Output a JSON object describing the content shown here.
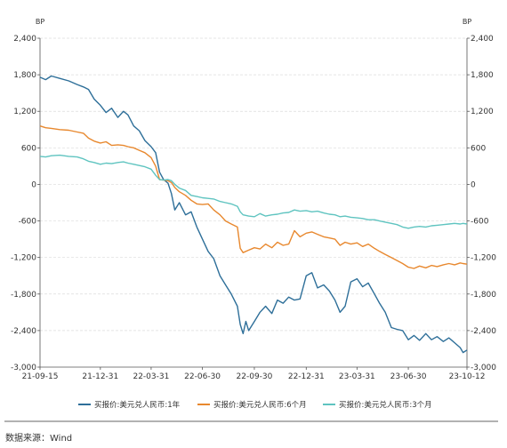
{
  "chart_data": {
    "type": "line",
    "ylabel_left": "BP",
    "ylabel_right": "BP",
    "ylim": [
      -3000,
      2400
    ],
    "yticks": [
      2400,
      1800,
      1200,
      600,
      0,
      -600,
      -1200,
      -1800,
      -2400,
      -3000
    ],
    "ytick_labels": [
      "2,400",
      "1,800",
      "1,200",
      "600",
      "0",
      "-600",
      "-1,200",
      "-1,800",
      "-2,400",
      "-3,000"
    ],
    "xticks": [
      "21-09-15",
      "21-12-31",
      "22-03-31",
      "22-06-30",
      "22-09-30",
      "22-12-31",
      "23-03-31",
      "23-06-30",
      "23-10-12"
    ],
    "grid": true,
    "legend": "bottom",
    "source": "数据来源：Wind",
    "series": [
      {
        "name": "买报价:美元兑人民币:1年",
        "color": "#2e6f99",
        "points": [
          [
            "21-09-15",
            1760
          ],
          [
            "21-09-25",
            1720
          ],
          [
            "21-10-05",
            1780
          ],
          [
            "21-10-20",
            1740
          ],
          [
            "21-11-05",
            1700
          ],
          [
            "21-11-20",
            1640
          ],
          [
            "21-12-01",
            1600
          ],
          [
            "21-12-10",
            1560
          ],
          [
            "21-12-20",
            1400
          ],
          [
            "21-12-31",
            1300
          ],
          [
            "22-01-10",
            1180
          ],
          [
            "22-01-20",
            1250
          ],
          [
            "22-01-31",
            1100
          ],
          [
            "22-02-10",
            1200
          ],
          [
            "22-02-18",
            1140
          ],
          [
            "22-02-28",
            960
          ],
          [
            "22-03-10",
            880
          ],
          [
            "22-03-20",
            720
          ],
          [
            "22-03-31",
            620
          ],
          [
            "22-04-08",
            520
          ],
          [
            "22-04-15",
            200
          ],
          [
            "22-04-22",
            80
          ],
          [
            "22-04-30",
            20
          ],
          [
            "22-05-06",
            -150
          ],
          [
            "22-05-12",
            -420
          ],
          [
            "22-05-20",
            -300
          ],
          [
            "22-05-31",
            -500
          ],
          [
            "22-06-10",
            -450
          ],
          [
            "22-06-20",
            -700
          ],
          [
            "22-06-30",
            -900
          ],
          [
            "22-07-10",
            -1100
          ],
          [
            "22-07-20",
            -1220
          ],
          [
            "22-07-31",
            -1500
          ],
          [
            "22-08-10",
            -1650
          ],
          [
            "22-08-20",
            -1800
          ],
          [
            "22-08-31",
            -2000
          ],
          [
            "22-09-05",
            -2300
          ],
          [
            "22-09-10",
            -2450
          ],
          [
            "22-09-15",
            -2250
          ],
          [
            "22-09-20",
            -2400
          ],
          [
            "22-09-30",
            -2250
          ],
          [
            "22-10-10",
            -2100
          ],
          [
            "22-10-20",
            -2000
          ],
          [
            "22-10-31",
            -2120
          ],
          [
            "22-11-10",
            -1900
          ],
          [
            "22-11-20",
            -1950
          ],
          [
            "22-11-30",
            -1850
          ],
          [
            "22-12-10",
            -1900
          ],
          [
            "22-12-20",
            -1880
          ],
          [
            "22-12-31",
            -1500
          ],
          [
            "23-01-10",
            -1450
          ],
          [
            "23-01-20",
            -1700
          ],
          [
            "23-01-31",
            -1650
          ],
          [
            "23-02-10",
            -1750
          ],
          [
            "23-02-20",
            -1900
          ],
          [
            "23-03-01",
            -2100
          ],
          [
            "23-03-10",
            -2000
          ],
          [
            "23-03-20",
            -1600
          ],
          [
            "23-03-31",
            -1550
          ],
          [
            "23-04-10",
            -1680
          ],
          [
            "23-04-20",
            -1620
          ],
          [
            "23-05-01",
            -1800
          ],
          [
            "23-05-10",
            -1950
          ],
          [
            "23-05-20",
            -2100
          ],
          [
            "23-05-31",
            -2350
          ],
          [
            "23-06-10",
            -2380
          ],
          [
            "23-06-20",
            -2400
          ],
          [
            "23-06-30",
            -2550
          ],
          [
            "23-07-10",
            -2480
          ],
          [
            "23-07-20",
            -2560
          ],
          [
            "23-07-31",
            -2450
          ],
          [
            "23-08-10",
            -2550
          ],
          [
            "23-08-20",
            -2500
          ],
          [
            "23-08-31",
            -2580
          ],
          [
            "23-09-10",
            -2520
          ],
          [
            "23-09-20",
            -2600
          ],
          [
            "23-09-30",
            -2680
          ],
          [
            "23-10-05",
            -2760
          ],
          [
            "23-10-12",
            -2720
          ]
        ]
      },
      {
        "name": "买报价:美元兑人民币:6个月",
        "color": "#e8882e",
        "points": [
          [
            "21-09-15",
            960
          ],
          [
            "21-09-25",
            930
          ],
          [
            "21-10-05",
            920
          ],
          [
            "21-10-20",
            900
          ],
          [
            "21-11-05",
            890
          ],
          [
            "21-11-20",
            860
          ],
          [
            "21-12-01",
            840
          ],
          [
            "21-12-10",
            760
          ],
          [
            "21-12-20",
            710
          ],
          [
            "21-12-31",
            680
          ],
          [
            "22-01-10",
            700
          ],
          [
            "22-01-20",
            640
          ],
          [
            "22-01-31",
            650
          ],
          [
            "22-02-10",
            640
          ],
          [
            "22-02-18",
            620
          ],
          [
            "22-02-28",
            600
          ],
          [
            "22-03-10",
            560
          ],
          [
            "22-03-20",
            520
          ],
          [
            "22-03-31",
            440
          ],
          [
            "22-04-08",
            300
          ],
          [
            "22-04-15",
            80
          ],
          [
            "22-04-22",
            70
          ],
          [
            "22-04-30",
            60
          ],
          [
            "22-05-06",
            30
          ],
          [
            "22-05-12",
            -50
          ],
          [
            "22-05-20",
            -120
          ],
          [
            "22-05-31",
            -180
          ],
          [
            "22-06-10",
            -260
          ],
          [
            "22-06-20",
            -320
          ],
          [
            "22-06-30",
            -330
          ],
          [
            "22-07-10",
            -320
          ],
          [
            "22-07-20",
            -420
          ],
          [
            "22-07-31",
            -500
          ],
          [
            "22-08-10",
            -600
          ],
          [
            "22-08-20",
            -650
          ],
          [
            "22-08-31",
            -700
          ],
          [
            "22-09-05",
            -1050
          ],
          [
            "22-09-10",
            -1120
          ],
          [
            "22-09-20",
            -1080
          ],
          [
            "22-09-30",
            -1040
          ],
          [
            "22-10-10",
            -1060
          ],
          [
            "22-10-20",
            -980
          ],
          [
            "22-10-31",
            -1040
          ],
          [
            "22-11-10",
            -950
          ],
          [
            "22-11-20",
            -1000
          ],
          [
            "22-11-30",
            -980
          ],
          [
            "22-12-10",
            -760
          ],
          [
            "22-12-20",
            -860
          ],
          [
            "22-12-31",
            -800
          ],
          [
            "23-01-10",
            -780
          ],
          [
            "23-01-20",
            -820
          ],
          [
            "23-01-31",
            -860
          ],
          [
            "23-02-10",
            -880
          ],
          [
            "23-02-20",
            -900
          ],
          [
            "23-03-01",
            -1000
          ],
          [
            "23-03-10",
            -950
          ],
          [
            "23-03-20",
            -980
          ],
          [
            "23-03-31",
            -960
          ],
          [
            "23-04-10",
            -1020
          ],
          [
            "23-04-20",
            -980
          ],
          [
            "23-05-01",
            -1050
          ],
          [
            "23-05-10",
            -1100
          ],
          [
            "23-05-20",
            -1150
          ],
          [
            "23-05-31",
            -1200
          ],
          [
            "23-06-10",
            -1250
          ],
          [
            "23-06-20",
            -1300
          ],
          [
            "23-06-30",
            -1360
          ],
          [
            "23-07-10",
            -1380
          ],
          [
            "23-07-20",
            -1340
          ],
          [
            "23-07-31",
            -1370
          ],
          [
            "23-08-10",
            -1330
          ],
          [
            "23-08-20",
            -1350
          ],
          [
            "23-08-31",
            -1320
          ],
          [
            "23-09-10",
            -1300
          ],
          [
            "23-09-20",
            -1320
          ],
          [
            "23-09-30",
            -1290
          ],
          [
            "23-10-05",
            -1300
          ],
          [
            "23-10-12",
            -1310
          ]
        ]
      },
      {
        "name": "买报价:美元兑人民币:3个月",
        "color": "#5fc4c0",
        "points": [
          [
            "21-09-15",
            460
          ],
          [
            "21-09-25",
            450
          ],
          [
            "21-10-05",
            470
          ],
          [
            "21-10-20",
            480
          ],
          [
            "21-11-05",
            460
          ],
          [
            "21-11-20",
            450
          ],
          [
            "21-12-01",
            420
          ],
          [
            "21-12-10",
            380
          ],
          [
            "21-12-20",
            360
          ],
          [
            "21-12-31",
            330
          ],
          [
            "22-01-10",
            350
          ],
          [
            "22-01-20",
            340
          ],
          [
            "22-01-31",
            360
          ],
          [
            "22-02-10",
            370
          ],
          [
            "22-02-18",
            350
          ],
          [
            "22-02-28",
            330
          ],
          [
            "22-03-10",
            310
          ],
          [
            "22-03-20",
            290
          ],
          [
            "22-03-31",
            250
          ],
          [
            "22-04-08",
            150
          ],
          [
            "22-04-15",
            80
          ],
          [
            "22-04-22",
            70
          ],
          [
            "22-04-30",
            80
          ],
          [
            "22-05-06",
            60
          ],
          [
            "22-05-12",
            0
          ],
          [
            "22-05-20",
            -60
          ],
          [
            "22-05-31",
            -100
          ],
          [
            "22-06-10",
            -180
          ],
          [
            "22-06-20",
            -200
          ],
          [
            "22-06-30",
            -220
          ],
          [
            "22-07-10",
            -230
          ],
          [
            "22-07-20",
            -240
          ],
          [
            "22-07-31",
            -280
          ],
          [
            "22-08-10",
            -300
          ],
          [
            "22-08-20",
            -320
          ],
          [
            "22-08-31",
            -360
          ],
          [
            "22-09-05",
            -450
          ],
          [
            "22-09-10",
            -500
          ],
          [
            "22-09-20",
            -520
          ],
          [
            "22-09-30",
            -530
          ],
          [
            "22-10-10",
            -480
          ],
          [
            "22-10-20",
            -520
          ],
          [
            "22-10-31",
            -500
          ],
          [
            "22-11-10",
            -490
          ],
          [
            "22-11-20",
            -470
          ],
          [
            "22-11-30",
            -460
          ],
          [
            "22-12-10",
            -420
          ],
          [
            "22-12-20",
            -440
          ],
          [
            "22-12-31",
            -430
          ],
          [
            "23-01-10",
            -450
          ],
          [
            "23-01-20",
            -440
          ],
          [
            "23-01-31",
            -470
          ],
          [
            "23-02-10",
            -490
          ],
          [
            "23-02-20",
            -500
          ],
          [
            "23-03-01",
            -530
          ],
          [
            "23-03-10",
            -520
          ],
          [
            "23-03-20",
            -540
          ],
          [
            "23-03-31",
            -550
          ],
          [
            "23-04-10",
            -560
          ],
          [
            "23-04-20",
            -580
          ],
          [
            "23-05-01",
            -580
          ],
          [
            "23-05-10",
            -600
          ],
          [
            "23-05-20",
            -620
          ],
          [
            "23-05-31",
            -640
          ],
          [
            "23-06-10",
            -660
          ],
          [
            "23-06-20",
            -700
          ],
          [
            "23-06-30",
            -720
          ],
          [
            "23-07-10",
            -700
          ],
          [
            "23-07-20",
            -690
          ],
          [
            "23-07-31",
            -700
          ],
          [
            "23-08-10",
            -680
          ],
          [
            "23-08-20",
            -670
          ],
          [
            "23-08-31",
            -660
          ],
          [
            "23-09-10",
            -650
          ],
          [
            "23-09-20",
            -640
          ],
          [
            "23-09-30",
            -650
          ],
          [
            "23-10-05",
            -640
          ],
          [
            "23-10-12",
            -650
          ]
        ]
      }
    ]
  }
}
